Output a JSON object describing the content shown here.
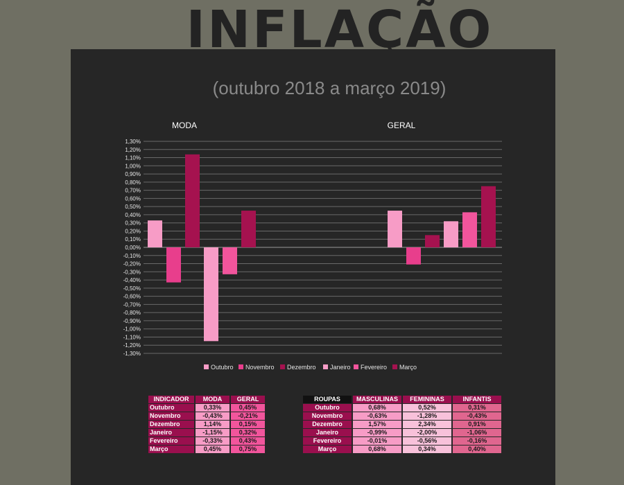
{
  "header": {
    "title": "INFLAÇÃO",
    "subtitle": "(outubro 2018 a março 2019)"
  },
  "colors": {
    "page_bg": "#6f6f63",
    "panel_bg": "#262626",
    "gridline": "#6a6a6a",
    "series": [
      "#f79cc6",
      "#e83e8c",
      "#a5124f",
      "#f79cc6",
      "#f2559c",
      "#a5124f"
    ]
  },
  "chart_data": {
    "type": "bar",
    "categories": [
      "MODA",
      "GERAL"
    ],
    "series": [
      {
        "name": "Outubro",
        "values": [
          0.33,
          0.45
        ]
      },
      {
        "name": "Novembro",
        "values": [
          -0.43,
          -0.21
        ]
      },
      {
        "name": "Dezembro",
        "values": [
          1.14,
          0.15
        ]
      },
      {
        "name": "Janeiro",
        "values": [
          -1.15,
          0.32
        ]
      },
      {
        "name": "Fevereiro",
        "values": [
          -0.33,
          0.43
        ]
      },
      {
        "name": "Março",
        "values": [
          0.45,
          0.75
        ]
      }
    ],
    "ylim": [
      -1.3,
      1.3
    ],
    "ytick_step": 0.1,
    "yticks": [
      "1,30%",
      "1,20%",
      "1,10%",
      "1,00%",
      "0,90%",
      "0,80%",
      "0,70%",
      "0,60%",
      "0,50%",
      "0,40%",
      "0,30%",
      "0,20%",
      "0,10%",
      "0,00%",
      "-0,10%",
      "-0,20%",
      "-0,30%",
      "-0,40%",
      "-0,50%",
      "-0,60%",
      "-0,70%",
      "-0,80%",
      "-0,90%",
      "-1,00%",
      "-1,10%",
      "-1,20%",
      "-1,30%"
    ],
    "grid": true,
    "legend_position": "bottom"
  },
  "tables": {
    "indicador": {
      "headers": [
        "INDICADOR",
        "MODA",
        "GERAL"
      ],
      "rows": [
        [
          "Outubro",
          "0,33%",
          "0,45%"
        ],
        [
          "Novembro",
          "-0,43%",
          "-0,21%"
        ],
        [
          "Dezembro",
          "1,14%",
          "0,15%"
        ],
        [
          "Janeiro",
          "-1,15%",
          "0,32%"
        ],
        [
          "Fevereiro",
          "-0,33%",
          "0,43%"
        ],
        [
          "Março",
          "0,45%",
          "0,75%"
        ]
      ],
      "colors": [
        "#f79cc6",
        "#f2559c"
      ]
    },
    "roupas": {
      "headers": [
        "ROUPAS",
        "MASCULINAS",
        "FEMININAS",
        "INFANTIS"
      ],
      "rows": [
        [
          "Outubro",
          "0,68%",
          "0,52%",
          "0,31%"
        ],
        [
          "Novembro",
          "-0,63%",
          "-1,28%",
          "-0,43%"
        ],
        [
          "Dezembro",
          "1,57%",
          "2,34%",
          "0,91%"
        ],
        [
          "Janeiro",
          "-0,99%",
          "-2,00%",
          "-1,06%"
        ],
        [
          "Fevereiro",
          "-0,01%",
          "-0,56%",
          "-0,16%"
        ],
        [
          "Março",
          "0,68%",
          "0,34%",
          "0,40%"
        ]
      ],
      "colors": [
        "#f79cc6",
        "#f8c1da",
        "#e0668f"
      ]
    }
  }
}
